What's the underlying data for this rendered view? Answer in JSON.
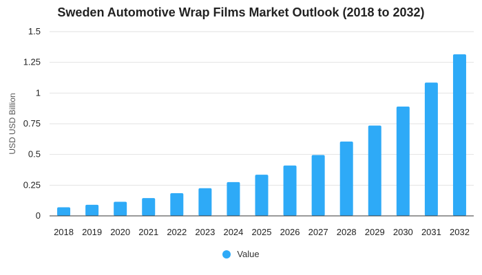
{
  "chart_data": {
    "type": "bar",
    "title": "Sweden Automotive Wrap Films Market Outlook (2018 to 2032)",
    "ylabel": "USD USD Billion",
    "xlabel": "",
    "categories": [
      "2018",
      "2019",
      "2020",
      "2021",
      "2022",
      "2023",
      "2024",
      "2025",
      "2026",
      "2027",
      "2028",
      "2029",
      "2030",
      "2031",
      "2032"
    ],
    "series": [
      {
        "name": "Value",
        "values": [
          0.07,
          0.09,
          0.115,
          0.145,
          0.185,
          0.225,
          0.275,
          0.335,
          0.41,
          0.495,
          0.605,
          0.735,
          0.89,
          1.085,
          1.315
        ]
      }
    ],
    "ylim": [
      0,
      1.5
    ],
    "yticks": [
      "0",
      "0.25",
      "0.5",
      "0.75",
      "1",
      "1.25",
      "1.5"
    ],
    "grid": true,
    "legend_position": "bottom",
    "colors": {
      "bar": "#2eaaf7",
      "grid": "#e2e2e2",
      "axis": "#333333"
    }
  }
}
